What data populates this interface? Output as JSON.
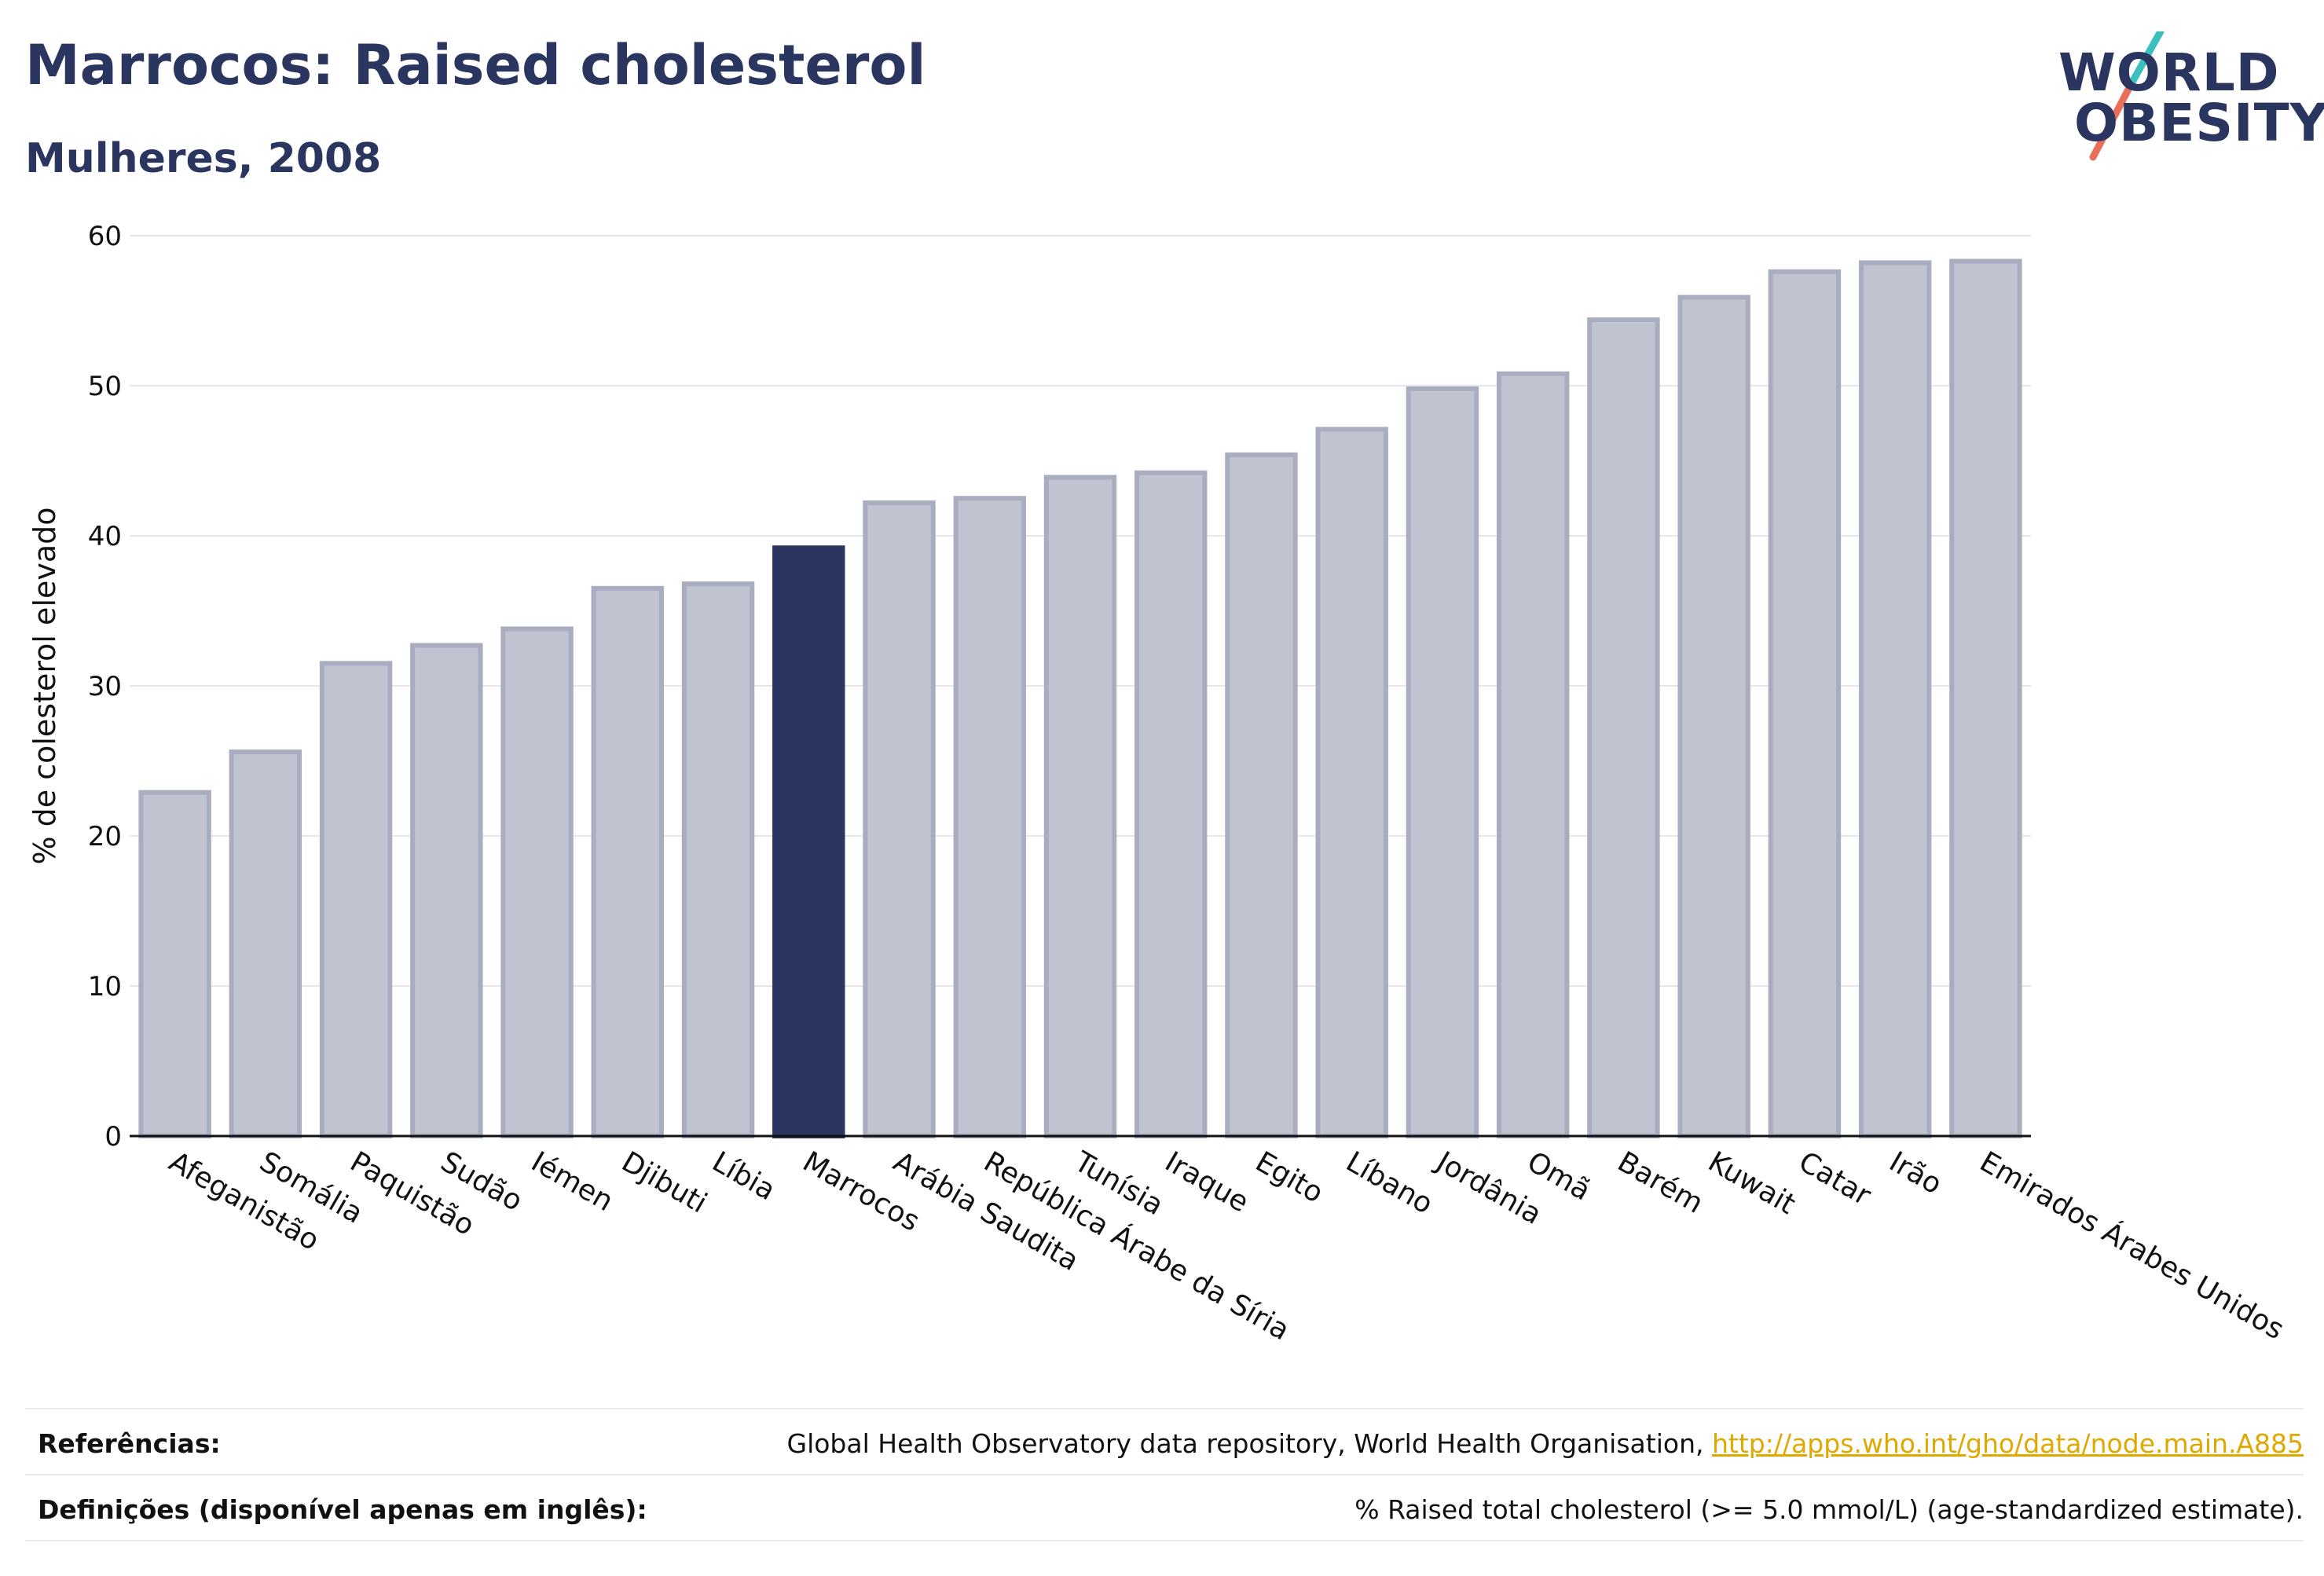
{
  "header": {
    "title": "Marrocos: Raised cholesterol",
    "subtitle": "Mulheres, 2008"
  },
  "logo": {
    "line1": "WORLD",
    "line2": "OBESITY"
  },
  "colors": {
    "highlight_bar": "#2b3660",
    "other_bar_fill": "#c0c3d0",
    "other_bar_stroke": "#a9adc0",
    "accent_teal": "#3cbfbf",
    "accent_coral": "#e8705a",
    "link": "#e0a800"
  },
  "chart_data": {
    "type": "bar",
    "ylabel": "% de colesterol elevado",
    "ylim": [
      0,
      60
    ],
    "yticks": [
      0,
      10,
      20,
      30,
      40,
      50,
      60
    ],
    "grid": true,
    "highlight": "Marrocos",
    "categories": [
      "Afeganistão",
      "Somália",
      "Paquistão",
      "Sudão",
      "Iémen",
      "Djibuti",
      "Líbia",
      "Marrocos",
      "Arábia Saudita",
      "República Árabe da Síria",
      "Tunísia",
      "Iraque",
      "Egito",
      "Líbano",
      "Jordânia",
      "Omã",
      "Barém",
      "Kuwait",
      "Catar",
      "Irão",
      "Emirados Árabes Unidos"
    ],
    "values": [
      22.9,
      25.6,
      31.5,
      32.7,
      33.8,
      36.5,
      36.8,
      39.2,
      42.2,
      42.5,
      43.9,
      44.2,
      45.4,
      47.1,
      49.8,
      50.8,
      54.4,
      55.9,
      57.6,
      58.2,
      58.3
    ]
  },
  "footer": {
    "references_label": "Referências:",
    "references_text": "Global Health Observatory data repository, World Health Organisation,",
    "references_link": "http://apps.who.int/gho/data/node.main.A885",
    "definitions_label": "Definições (disponível apenas em inglês):",
    "definitions_text": "% Raised total cholesterol (>= 5.0 mmol/L) (age-standardized estimate)."
  }
}
